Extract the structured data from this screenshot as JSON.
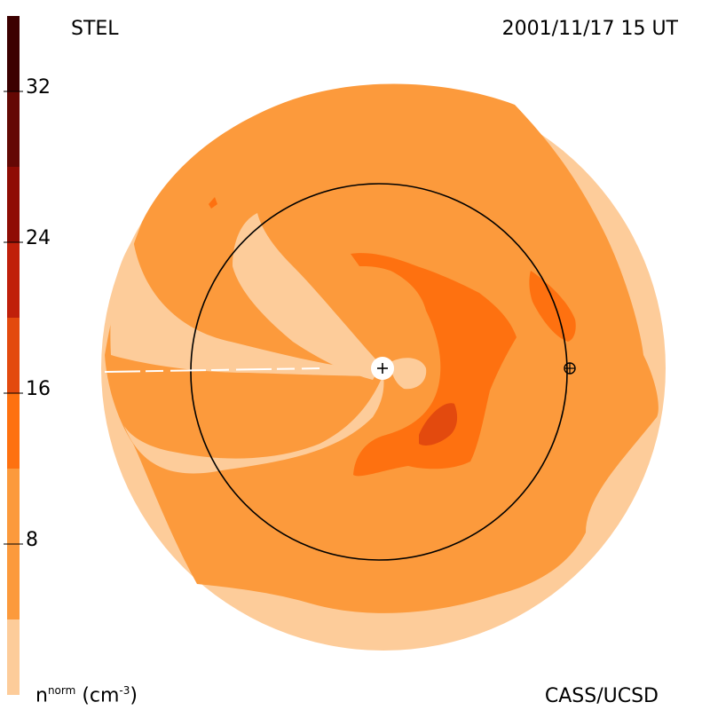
{
  "header": {
    "source": "STEL",
    "datetime": "2001/11/17 15 UT"
  },
  "footer": {
    "credit": "CASS/UCSD"
  },
  "colorbar": {
    "unit_base": "n",
    "unit_sup": "norm",
    "unit_paren": "(cm",
    "unit_exp": "-3",
    "unit_close": ")",
    "range": [
      0,
      36
    ],
    "ticks": [
      {
        "value": 8,
        "label": "8"
      },
      {
        "value": 16,
        "label": "16"
      },
      {
        "value": 24,
        "label": "24"
      },
      {
        "value": 32,
        "label": "32"
      }
    ],
    "bands": [
      {
        "from": 0,
        "to": 4,
        "color": "#fdcc9a"
      },
      {
        "from": 4,
        "to": 12,
        "color": "#fc9a3c"
      },
      {
        "from": 12,
        "to": 16,
        "color": "#fe7110"
      },
      {
        "from": 16,
        "to": 20,
        "color": "#e34a0e"
      },
      {
        "from": 20,
        "to": 24,
        "color": "#c0200a"
      },
      {
        "from": 24,
        "to": 28,
        "color": "#8f0c04"
      },
      {
        "from": 28,
        "to": 32,
        "color": "#640804"
      },
      {
        "from": 32,
        "to": 36,
        "color": "#3c0000"
      }
    ]
  },
  "chart_data": {
    "type": "heatmap",
    "title": "STEL",
    "timestamp": "2001/11/17 15 UT",
    "quantity": "density",
    "colorbar_unit": "n^norm (cm^-3)",
    "colorbar_ticks": [
      8,
      16,
      24,
      32
    ],
    "colorbar_range": [
      0,
      36
    ],
    "regions": [
      {
        "level": "0-4",
        "color": "#fdcc9a",
        "description": "outer ring and spiral arms"
      },
      {
        "level": "4-12",
        "color": "#fc9a3c",
        "description": "bulk background"
      },
      {
        "level": "12-16",
        "color": "#fe7110",
        "description": "crescent east of sun"
      },
      {
        "level": "16-20",
        "color": "#e34a0e",
        "description": "small patch south-east"
      }
    ],
    "markers": [
      {
        "name": "Sun",
        "symbol": "+"
      },
      {
        "name": "Earth",
        "symbol": "⊕"
      }
    ],
    "reference_circle": "Earth orbit"
  },
  "icons": {
    "sun": "sun-plus-icon",
    "earth": "earth-circle-plus-icon"
  }
}
